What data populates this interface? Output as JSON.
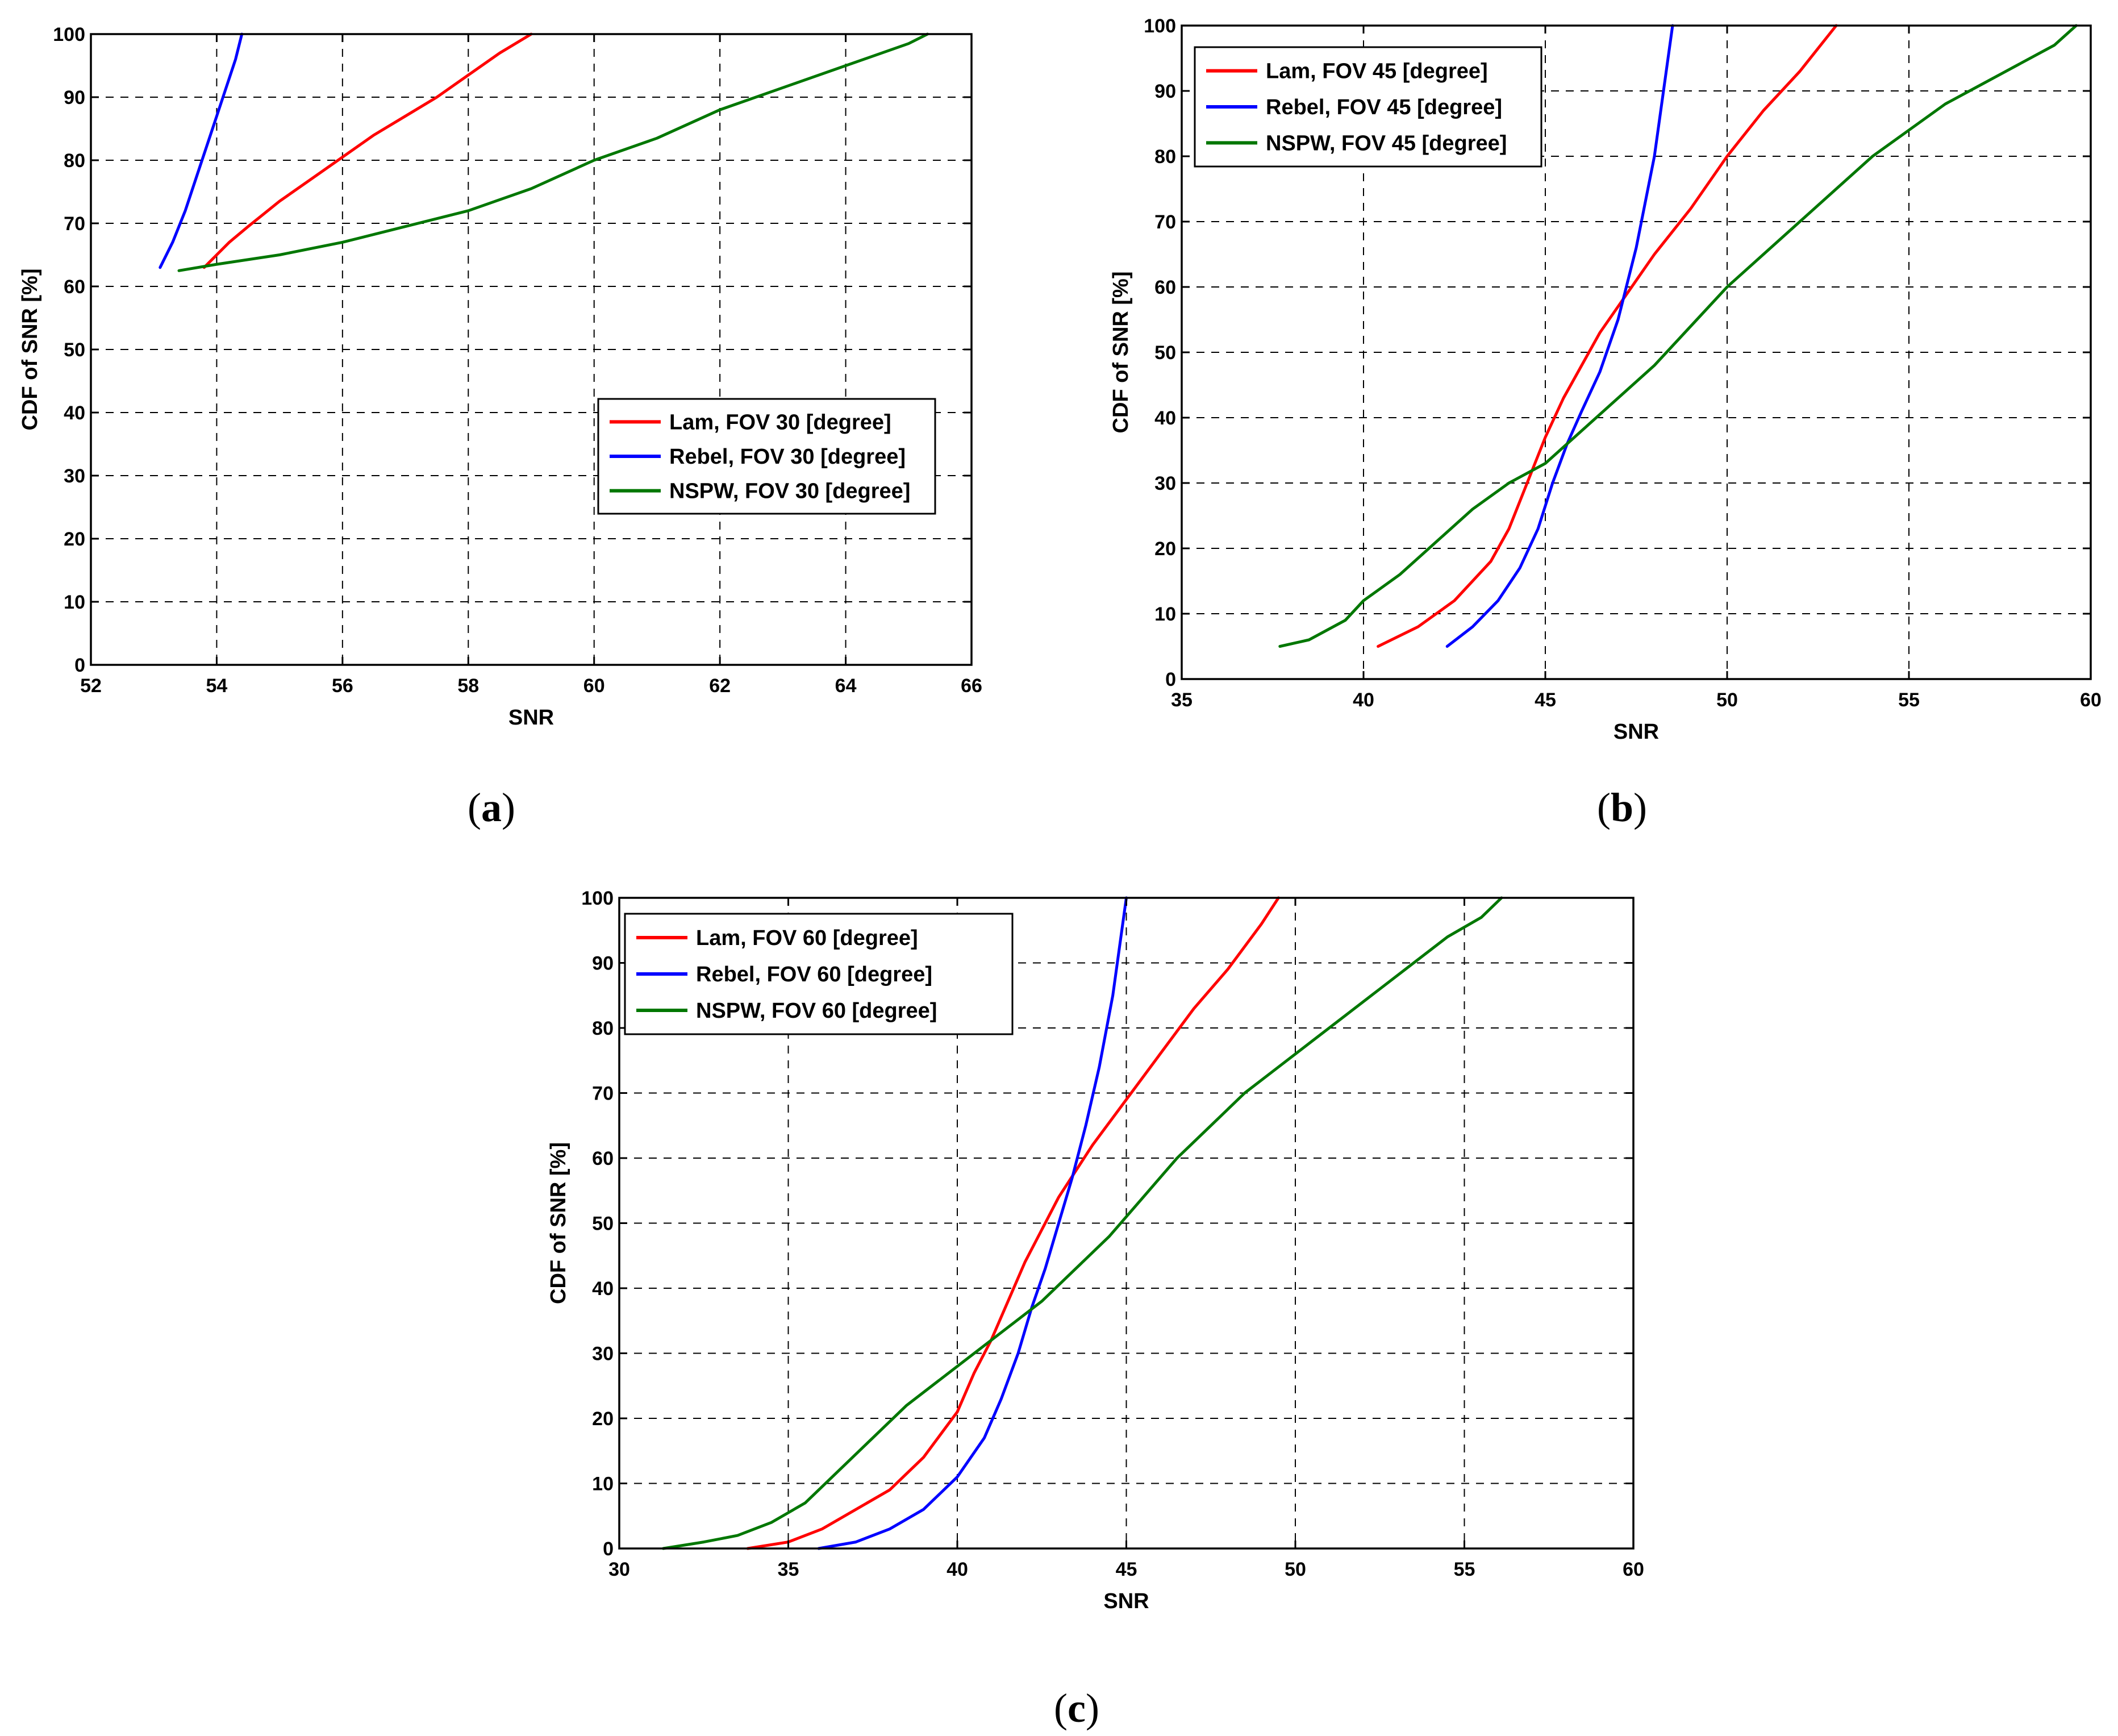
{
  "chart_data": [
    {
      "type": "line",
      "caption": "a",
      "xlabel": "SNR",
      "ylabel": "CDF of SNR [%]",
      "xlim": [
        52,
        66
      ],
      "ylim": [
        0,
        100
      ],
      "xticks": [
        52,
        54,
        56,
        58,
        60,
        62,
        64,
        66
      ],
      "yticks": [
        0,
        10,
        20,
        30,
        40,
        50,
        60,
        70,
        80,
        90,
        100
      ],
      "grid": true,
      "legend_position": "middle-right",
      "series": [
        {
          "name": "Lam, FOV 30 [degree]",
          "color": "#ff0000",
          "x": [
            53.8,
            54.0,
            54.2,
            54.5,
            55.0,
            55.5,
            56.0,
            56.5,
            57.0,
            57.5,
            58.0,
            58.5,
            59.0
          ],
          "y": [
            63,
            65,
            67,
            69.5,
            73.5,
            77,
            80.5,
            84,
            87,
            90,
            93.5,
            97,
            100
          ]
        },
        {
          "name": "Rebel, FOV 30 [degree]",
          "color": "#0000ff",
          "x": [
            53.1,
            53.3,
            53.5,
            53.7,
            53.9,
            54.1,
            54.3,
            54.4
          ],
          "y": [
            63,
            67,
            72,
            78,
            84,
            90,
            96,
            100
          ]
        },
        {
          "name": "NSPW, FOV 30 [degree]",
          "color": "#007700",
          "x": [
            53.4,
            54.0,
            55.0,
            56.0,
            57.0,
            58.0,
            59.0,
            60.0,
            61.0,
            62.0,
            63.0,
            64.0,
            65.0,
            65.3
          ],
          "y": [
            62.5,
            63.5,
            65,
            67,
            69.5,
            72,
            75.5,
            80,
            83.5,
            88,
            91.5,
            95,
            98.5,
            100
          ]
        }
      ]
    },
    {
      "type": "line",
      "caption": "b",
      "xlabel": "SNR",
      "ylabel": "CDF of SNR [%]",
      "xlim": [
        35,
        60
      ],
      "ylim": [
        0,
        100
      ],
      "xticks": [
        35,
        40,
        45,
        50,
        55,
        60
      ],
      "yticks": [
        0,
        10,
        20,
        30,
        40,
        50,
        60,
        70,
        80,
        90,
        100
      ],
      "grid": true,
      "legend_position": "top-left",
      "series": [
        {
          "name": "Lam, FOV 45 [degree]",
          "color": "#ff0000",
          "x": [
            40.4,
            41.5,
            42.5,
            43.5,
            44.0,
            44.5,
            45.0,
            45.5,
            46.0,
            46.5,
            47.0,
            48.0,
            49.0,
            50.0,
            51.0,
            52.0,
            53.0
          ],
          "y": [
            5,
            8,
            12,
            18,
            23,
            30,
            37,
            43,
            48,
            53,
            57,
            65,
            72,
            80,
            87,
            93,
            100
          ]
        },
        {
          "name": "Rebel, FOV 45 [degree]",
          "color": "#0000ff",
          "x": [
            42.3,
            43.0,
            43.7,
            44.3,
            44.8,
            45.2,
            45.6,
            46.0,
            46.5,
            47.0,
            47.5,
            48.0,
            48.5
          ],
          "y": [
            5,
            8,
            12,
            17,
            23,
            30,
            36,
            41,
            47,
            55,
            66,
            80,
            100
          ]
        },
        {
          "name": "NSPW, FOV 45 [degree]",
          "color": "#007700",
          "x": [
            37.7,
            38.5,
            39.5,
            40.0,
            41.0,
            42.0,
            43.0,
            44.0,
            45.0,
            46.0,
            47.0,
            48.0,
            49.0,
            50.0,
            51.0,
            52.0,
            53.0,
            54.0,
            55.0,
            56.0,
            57.0,
            58.0,
            59.0,
            59.6
          ],
          "y": [
            5,
            6,
            9,
            12,
            16,
            21,
            26,
            30,
            33,
            38,
            43,
            48,
            54,
            60,
            65,
            70,
            75,
            80,
            84,
            88,
            91,
            94,
            97,
            100
          ]
        }
      ]
    },
    {
      "type": "line",
      "caption": "c",
      "xlabel": "SNR",
      "ylabel": "CDF of SNR [%]",
      "xlim": [
        30,
        60
      ],
      "ylim": [
        0,
        100
      ],
      "xticks": [
        30,
        35,
        40,
        45,
        50,
        55,
        60
      ],
      "yticks": [
        0,
        10,
        20,
        30,
        40,
        50,
        60,
        70,
        80,
        90,
        100
      ],
      "grid": true,
      "legend_position": "top-left",
      "series": [
        {
          "name": "Lam, FOV 60 [degree]",
          "color": "#ff0000",
          "x": [
            33.8,
            35.0,
            36.0,
            37.0,
            38.0,
            39.0,
            40.0,
            40.5,
            41.0,
            41.5,
            42.0,
            42.5,
            43.0,
            44.0,
            45.0,
            46.0,
            47.0,
            48.0,
            49.0,
            49.5
          ],
          "y": [
            0,
            1,
            3,
            6,
            9,
            14,
            21,
            27,
            32,
            38,
            44,
            49,
            54,
            62,
            69,
            76,
            83,
            89,
            96,
            100
          ]
        },
        {
          "name": "Rebel, FOV 60 [degree]",
          "color": "#0000ff",
          "x": [
            35.9,
            37.0,
            38.0,
            39.0,
            40.0,
            40.8,
            41.3,
            41.8,
            42.2,
            42.6,
            43.0,
            43.4,
            43.8,
            44.2,
            44.6,
            45.0
          ],
          "y": [
            0,
            1,
            3,
            6,
            11,
            17,
            23,
            30,
            37,
            43,
            50,
            57,
            65,
            74,
            85,
            100
          ]
        },
        {
          "name": "NSPW, FOV 60 [degree]",
          "color": "#007700",
          "x": [
            31.3,
            32.5,
            33.5,
            34.5,
            35.5,
            36.5,
            37.5,
            38.5,
            39.5,
            40.5,
            41.5,
            42.5,
            43.5,
            44.5,
            45.5,
            46.5,
            47.5,
            48.5,
            49.5,
            50.5,
            51.5,
            52.5,
            53.5,
            54.5,
            55.5,
            56.1
          ],
          "y": [
            0,
            1,
            2,
            4,
            7,
            12,
            17,
            22,
            26,
            30,
            34,
            38,
            43,
            48,
            54,
            60,
            65,
            70,
            74,
            78,
            82,
            86,
            90,
            94,
            97,
            100
          ]
        }
      ]
    }
  ]
}
